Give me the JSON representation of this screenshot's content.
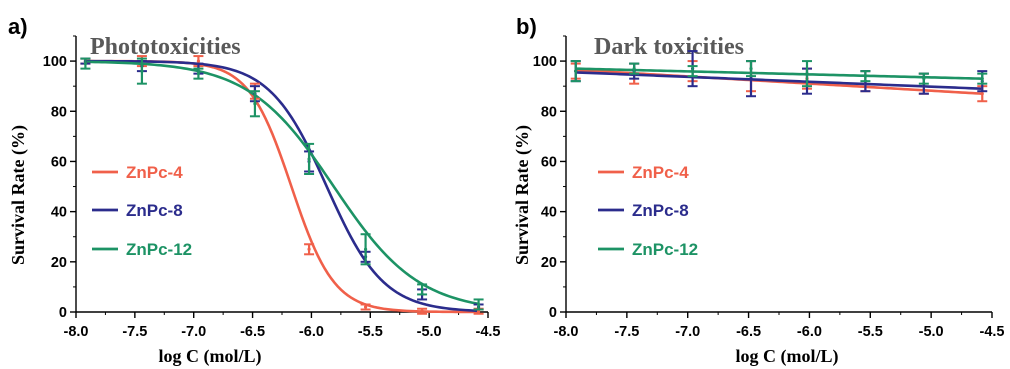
{
  "chart_data": [
    {
      "panel": "a)",
      "type": "line",
      "title": "Phototoxicities",
      "xlabel": "log C (mol/L)",
      "ylabel": "Survival Rate (%)",
      "xlim": [
        -8.0,
        -4.5
      ],
      "ylim": [
        0,
        110
      ],
      "xticks": [
        "-8.0",
        "-7.5",
        "-7.0",
        "-6.5",
        "-6.0",
        "-5.5",
        "-5.0",
        "-4.5"
      ],
      "yticks": [
        "0",
        "20",
        "40",
        "60",
        "80",
        "100"
      ],
      "grid": false,
      "legend_position": "left-middle",
      "x": [
        -7.92,
        -7.44,
        -6.96,
        -6.48,
        -6.02,
        -5.54,
        -5.06,
        -4.58
      ],
      "series": [
        {
          "name": "ZnPc-4",
          "color": "#F0604A",
          "points": [
            [
              -7.92,
              100
            ],
            [
              -7.44,
              100
            ],
            [
              -6.96,
              100
            ],
            [
              -6.48,
              88
            ],
            [
              -6.02,
              25
            ],
            [
              -5.54,
              2
            ],
            [
              -5.06,
              0.3
            ],
            [
              -4.58,
              0.3
            ]
          ],
          "err": [
            1,
            2,
            2,
            3,
            2,
            1,
            1,
            1
          ],
          "fit": {
            "top": 100,
            "bottom": 0,
            "logIC50": -6.17,
            "hill": 2.4
          }
        },
        {
          "name": "ZnPc-8",
          "color": "#2B2C8C",
          "points": [
            [
              -7.92,
              100
            ],
            [
              -7.44,
              98
            ],
            [
              -6.96,
              97
            ],
            [
              -6.48,
              87
            ],
            [
              -6.02,
              60
            ],
            [
              -5.54,
              22
            ],
            [
              -5.06,
              7
            ],
            [
              -4.58,
              2
            ]
          ],
          "err": [
            1,
            2,
            2,
            3,
            4,
            2,
            2,
            1
          ],
          "fit": {
            "top": 100,
            "bottom": 0,
            "logIC50": -5.87,
            "hill": 1.8
          }
        },
        {
          "name": "ZnPc-12",
          "color": "#1D9365",
          "points": [
            [
              -7.92,
              99
            ],
            [
              -7.44,
              96
            ],
            [
              -6.96,
              95
            ],
            [
              -6.48,
              83
            ],
            [
              -6.02,
              61
            ],
            [
              -5.54,
              25
            ],
            [
              -5.06,
              9
            ],
            [
              -4.58,
              3
            ]
          ],
          "err": [
            2,
            5,
            2,
            5,
            6,
            6,
            2,
            2
          ],
          "fit": {
            "top": 100,
            "bottom": 0,
            "logIC50": -5.81,
            "hill": 1.2
          }
        }
      ]
    },
    {
      "panel": "b)",
      "type": "line",
      "title": "Dark toxicities",
      "xlabel": "log C (mol/L)",
      "ylabel": "Survival Rate (%)",
      "xlim": [
        -8.0,
        -4.5
      ],
      "ylim": [
        0,
        110
      ],
      "xticks": [
        "-8.0",
        "-7.5",
        "-7.0",
        "-6.5",
        "-6.0",
        "-5.5",
        "-5.0",
        "-4.5"
      ],
      "yticks": [
        "0",
        "20",
        "40",
        "60",
        "80",
        "100"
      ],
      "grid": false,
      "legend_position": "left-middle",
      "x": [
        -7.92,
        -7.44,
        -6.96,
        -6.48,
        -6.02,
        -5.54,
        -5.06,
        -4.58
      ],
      "series": [
        {
          "name": "ZnPc-4",
          "color": "#F0604A",
          "points": [
            [
              -7.92,
              96
            ],
            [
              -7.44,
              95
            ],
            [
              -6.96,
              96
            ],
            [
              -6.48,
              94
            ],
            [
              -6.02,
              93
            ],
            [
              -5.54,
              92
            ],
            [
              -5.06,
              91
            ],
            [
              -4.58,
              87
            ]
          ],
          "err": [
            3,
            4,
            4,
            6,
            4,
            4,
            4,
            3
          ],
          "fit": {
            "start": 96.5,
            "end": 87
          }
        },
        {
          "name": "ZnPc-8",
          "color": "#2B2C8C",
          "points": [
            [
              -7.92,
              96
            ],
            [
              -7.44,
              96
            ],
            [
              -6.96,
              97
            ],
            [
              -6.48,
              93
            ],
            [
              -6.02,
              92
            ],
            [
              -5.54,
              92
            ],
            [
              -5.06,
              91
            ],
            [
              -4.58,
              92
            ]
          ],
          "err": [
            4,
            3,
            7,
            7,
            5,
            4,
            4,
            4
          ],
          "fit": {
            "start": 95.5,
            "end": 89
          }
        },
        {
          "name": "ZnPc-12",
          "color": "#1D9365",
          "points": [
            [
              -7.92,
              96
            ],
            [
              -7.44,
              97
            ],
            [
              -6.96,
              96
            ],
            [
              -6.48,
              97
            ],
            [
              -6.02,
              95
            ],
            [
              -5.54,
              94
            ],
            [
              -5.06,
              93
            ],
            [
              -4.58,
              93
            ]
          ],
          "err": [
            4,
            2,
            2,
            3,
            5,
            2,
            2,
            2
          ],
          "fit": {
            "start": 97,
            "end": 93
          }
        }
      ]
    }
  ]
}
